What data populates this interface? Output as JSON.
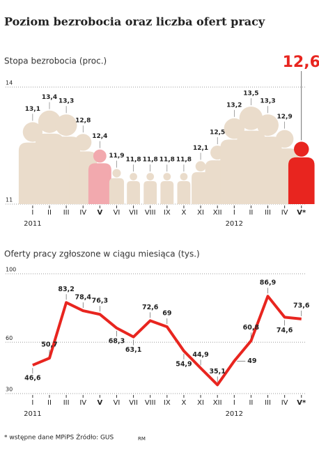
{
  "title": "Poziom bezrobocia oraz liczba ofert pracy",
  "chart_data": [
    {
      "type": "pictogram",
      "title": "Stopa bezrobocia (proc.)",
      "categories": [
        "I",
        "II",
        "III",
        "IV",
        "V",
        "VI",
        "VII",
        "VIII",
        "IX",
        "X",
        "XI",
        "XII",
        "I",
        "II",
        "III",
        "IV",
        "V*"
      ],
      "years": [
        "2011",
        null,
        null,
        null,
        null,
        null,
        null,
        null,
        null,
        null,
        null,
        null,
        "2012",
        null,
        null,
        null,
        null
      ],
      "values": [
        13.1,
        13.4,
        13.3,
        12.8,
        12.4,
        11.9,
        11.8,
        11.8,
        11.8,
        11.8,
        12.1,
        12.5,
        13.2,
        13.5,
        13.3,
        12.9,
        12.6
      ],
      "value_labels": [
        "13,1",
        "13,4",
        "13,3",
        "12,8",
        "12,4",
        "11,9",
        "11,8",
        "11,8",
        "11,8",
        "11,8",
        "12,1",
        "12,5",
        "13,2",
        "13,5",
        "13,3",
        "12,9",
        "12,6"
      ],
      "colors": [
        "#eadccb",
        "#eadccb",
        "#eadccb",
        "#eadccb",
        "#f2a9ae",
        "#eadccb",
        "#eadccb",
        "#eadccb",
        "#eadccb",
        "#eadccb",
        "#eadccb",
        "#eadccb",
        "#eadccb",
        "#eadccb",
        "#eadccb",
        "#eadccb",
        "#e8251f"
      ],
      "ylim": [
        11,
        14
      ],
      "yticks": [
        11,
        14
      ],
      "grid": true
    },
    {
      "type": "line",
      "title": "Oferty pracy zgłoszone w ciągu miesiąca (tys.)",
      "categories": [
        "I",
        "II",
        "III",
        "IV",
        "V",
        "VI",
        "VII",
        "VIII",
        "IX",
        "X",
        "XI",
        "XII",
        "I",
        "II",
        "III",
        "IV",
        "V*"
      ],
      "years": [
        "2011",
        null,
        null,
        null,
        null,
        null,
        null,
        null,
        null,
        null,
        null,
        null,
        "2012",
        null,
        null,
        null,
        null
      ],
      "values": [
        46.6,
        50.7,
        83.2,
        78.4,
        76.3,
        68.3,
        63.1,
        72.6,
        69,
        54.9,
        44.9,
        35.1,
        49,
        60.8,
        86.9,
        74.6,
        73.6
      ],
      "value_labels": [
        "46,6",
        "50,7",
        "83,2",
        "78,4",
        "76,3",
        "68,3",
        "63,1",
        "72,6",
        "69",
        "54,9",
        "44,9",
        "35,1",
        "49",
        "60,8",
        "86,9",
        "74,6",
        "73,6"
      ],
      "color": "#e8251f",
      "ylim": [
        30,
        100
      ],
      "yticks": [
        30,
        60,
        100
      ],
      "grid": true
    }
  ],
  "footnote": "* wstępne dane MPiPS   Źródło: GUS",
  "credit": "RM"
}
